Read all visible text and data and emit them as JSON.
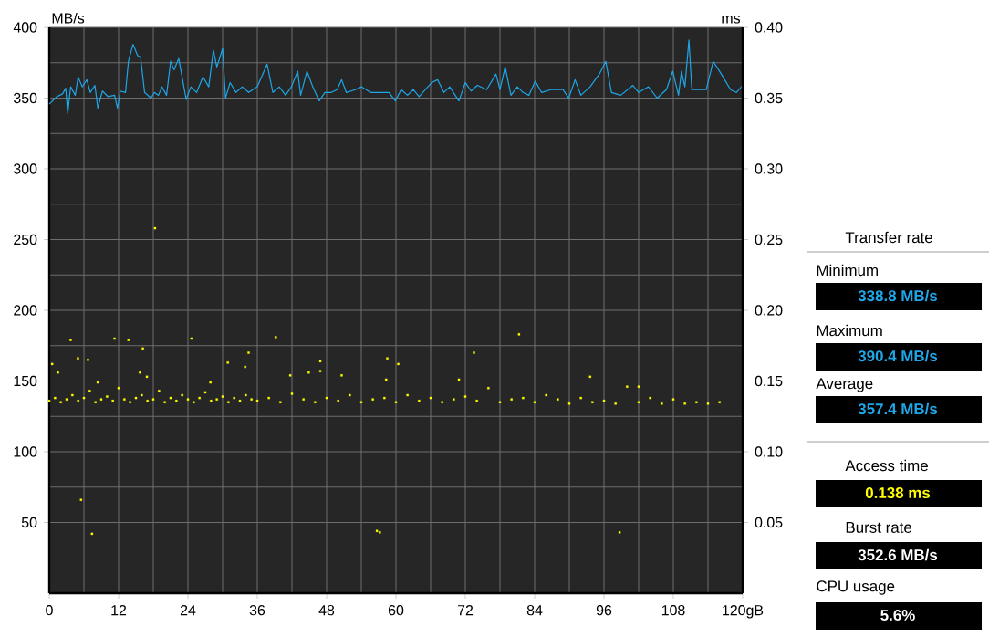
{
  "chart_data": [
    {
      "type": "line",
      "ylabel": "MB/s",
      "y2label": "ms",
      "grid": true,
      "xlim": [
        0,
        120
      ],
      "xticks": [
        0,
        12,
        24,
        36,
        48,
        60,
        72,
        84,
        96,
        108,
        {
          "value": 120,
          "label": "120gB"
        }
      ],
      "ylim": [
        0,
        400
      ],
      "yticks": [
        50,
        100,
        150,
        200,
        250,
        300,
        350,
        400
      ],
      "y2lim": [
        0,
        0.4
      ],
      "y2ticks": [
        0.05,
        {
          "value": 0.1,
          "label": "0.10"
        },
        0.15,
        {
          "value": 0.2,
          "label": "0.20"
        },
        0.25,
        {
          "value": 0.3,
          "label": "0.30"
        },
        0.35,
        {
          "value": 0.4,
          "label": "0.40"
        }
      ],
      "series": [
        {
          "type": "line",
          "color": "#1ea7e8",
          "marker": "none",
          "axis": "y",
          "x": [
            0,
            1.3,
            2.3,
            2.85,
            3.2,
            3.7,
            4.5,
            5,
            5.7,
            6.5,
            7.1,
            7.9,
            8.4,
            9.2,
            10.2,
            11.3,
            11.8,
            12.3,
            13.2,
            13.7,
            14.5,
            15.3,
            15.8,
            16.5,
            17.6,
            18.2,
            18.9,
            19.5,
            20.3,
            21,
            21.6,
            22.4,
            22.9,
            23.7,
            24.5,
            25.5,
            26.6,
            27.6,
            28.4,
            29,
            30,
            30.5,
            31.3,
            32.3,
            33.4,
            34.5,
            36,
            37.7,
            38.7,
            39.8,
            40.9,
            41.9,
            43,
            43.5,
            44.6,
            45.6,
            46.7,
            47.7,
            48.8,
            49.8,
            50.6,
            51.4,
            53,
            54,
            55.6,
            58.8,
            59.9,
            60.9,
            62,
            63,
            64,
            65.1,
            66.2,
            67.2,
            68.3,
            69.3,
            70.9,
            72,
            73,
            74.1,
            75.7,
            77.3,
            78,
            78.9,
            79.9,
            81,
            82,
            83,
            84.1,
            85.2,
            86.8,
            88.9,
            89.9,
            91,
            92,
            93.6,
            95.2,
            96.3,
            97.3,
            98.9,
            101,
            102,
            103.7,
            105.2,
            106.8,
            107.9,
            108.9,
            109.4,
            110,
            110.7,
            111.2,
            113.7,
            114.9,
            116.3,
            117.9,
            118.9,
            120
          ],
          "values": [
            345.7,
            351,
            353,
            357,
            339,
            358,
            352,
            365,
            358,
            363,
            354,
            359,
            343,
            355,
            351,
            352,
            343,
            355,
            354,
            376,
            388,
            380,
            379,
            354,
            350,
            354,
            352,
            358,
            352,
            376,
            370,
            378,
            367,
            349,
            358,
            354,
            365,
            358,
            384,
            372,
            385,
            350,
            361,
            354,
            358,
            354,
            358,
            374,
            354,
            358,
            352,
            358,
            369,
            352,
            369,
            358,
            348,
            354,
            354,
            356,
            363,
            354,
            356,
            358,
            354,
            354,
            348,
            356,
            352,
            356,
            351,
            356,
            361,
            363,
            354,
            358,
            348,
            361,
            355,
            359,
            356,
            367,
            356,
            372,
            352,
            358,
            354,
            352,
            362,
            354,
            356,
            356,
            350,
            363,
            352,
            358,
            367,
            376,
            354,
            352,
            359,
            354,
            358,
            350,
            356,
            369,
            352,
            369,
            358,
            391,
            356,
            356,
            376,
            367,
            356,
            354,
            359
          ]
        },
        {
          "type": "scatter",
          "color": "#ffff00",
          "marker": "square",
          "axis": "y2",
          "x": [
            0.5,
            1.5,
            3.7,
            4.96,
            6.7,
            5.5,
            7.4,
            8.4,
            11.3,
            13.7,
            16.2,
            15.7,
            16.9,
            18.3,
            24.6,
            27.9,
            30.9,
            33.9,
            34.5,
            39.2,
            41.7,
            44.9,
            46.9,
            46.9,
            50.6,
            56.7,
            57.2,
            58.5,
            60.4,
            58.3,
            73.5,
            81.3,
            70.9,
            93.6,
            98.7,
            102,
            0,
            1,
            2,
            3,
            4,
            5,
            6,
            7,
            8,
            9,
            10,
            11,
            12,
            13,
            14,
            15,
            16,
            17,
            18,
            19,
            20,
            21,
            22,
            23,
            24,
            25,
            26,
            27,
            28,
            29,
            30,
            31,
            32,
            33,
            34,
            35,
            36,
            38,
            40,
            42,
            44,
            46,
            48,
            50,
            52,
            54,
            56,
            58,
            60,
            62,
            64,
            66,
            68,
            70,
            72,
            74,
            76,
            78,
            80,
            82,
            84,
            86,
            88,
            90,
            92,
            94,
            96,
            98,
            100,
            102,
            104,
            106,
            108,
            110,
            112,
            114,
            116
          ],
          "values": [
            0.162,
            0.156,
            0.179,
            0.166,
            0.165,
            0.066,
            0.042,
            0.149,
            0.18,
            0.179,
            0.173,
            0.156,
            0.153,
            0.258,
            0.18,
            0.149,
            0.163,
            0.16,
            0.17,
            0.181,
            0.154,
            0.156,
            0.164,
            0.157,
            0.154,
            0.044,
            0.043,
            0.166,
            0.162,
            0.151,
            0.17,
            0.183,
            0.151,
            0.153,
            0.043,
            0.146,
            0.136,
            0.138,
            0.135,
            0.137,
            0.14,
            0.136,
            0.138,
            0.143,
            0.135,
            0.137,
            0.139,
            0.136,
            0.145,
            0.137,
            0.135,
            0.138,
            0.14,
            0.136,
            0.137,
            0.143,
            0.135,
            0.138,
            0.136,
            0.14,
            0.137,
            0.135,
            0.138,
            0.142,
            0.136,
            0.137,
            0.139,
            0.135,
            0.138,
            0.136,
            0.14,
            0.137,
            0.136,
            0.138,
            0.135,
            0.141,
            0.137,
            0.135,
            0.138,
            0.136,
            0.14,
            0.135,
            0.137,
            0.138,
            0.135,
            0.14,
            0.136,
            0.138,
            0.135,
            0.137,
            0.139,
            0.136,
            0.145,
            0.135,
            0.137,
            0.138,
            0.135,
            0.14,
            0.137,
            0.134,
            0.138,
            0.135,
            0.136,
            0.134,
            0.146,
            0.135,
            0.138,
            0.134,
            0.137,
            0.134,
            0.135,
            0.134,
            0.135
          ]
        }
      ]
    },
    {
      "type": "other",
      "annotations": [
        "Transfer rate",
        "Minimum",
        "338.8 MB/s",
        "Maximum",
        "390.4 MB/s",
        "Average",
        "357.4 MB/s",
        "Access time",
        "0.138 ms",
        "Burst rate",
        "352.6 MB/s",
        "CPU usage",
        "5.6%"
      ]
    }
  ]
}
